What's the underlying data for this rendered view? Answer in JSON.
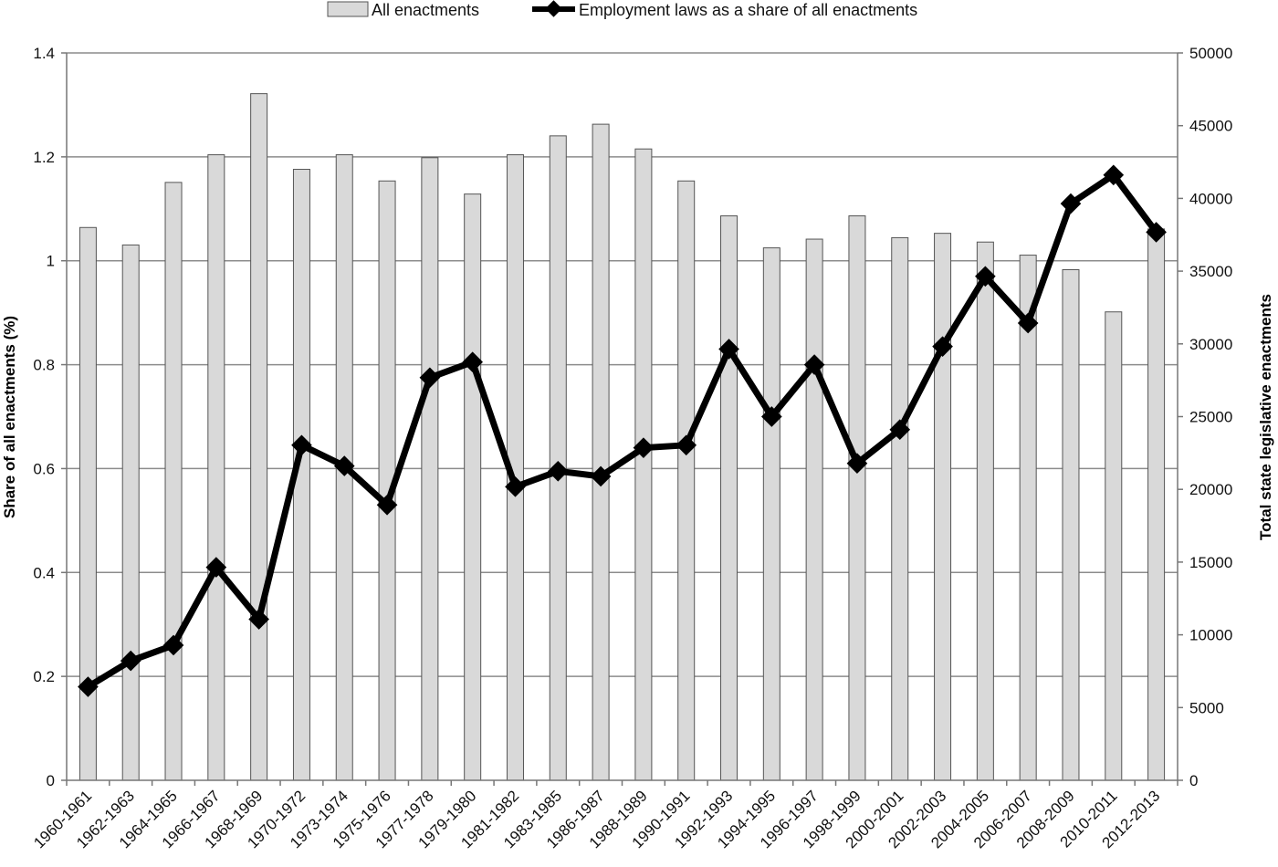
{
  "chart_data": {
    "type": "bar",
    "categories": [
      "1960-1961",
      "1962-1963",
      "1964-1965",
      "1966-1967",
      "1968-1969",
      "1970-1972",
      "1973-1974",
      "1975-1976",
      "1977-1978",
      "1979-1980",
      "1981-1982",
      "1983-1985",
      "1986-1987",
      "1988-1989",
      "1990-1991",
      "1992-1993",
      "1994-1995",
      "1996-1997",
      "1998-1999",
      "2000-2001",
      "2002-2003",
      "2004-2005",
      "2006-2007",
      "2008-2009",
      "2010-2011",
      "2012-2013"
    ],
    "series": [
      {
        "name": "All enactments",
        "type": "bar",
        "axis": "right",
        "color": "#d9d9d9",
        "values": [
          38000,
          36800,
          41100,
          43000,
          47200,
          42000,
          43000,
          41200,
          42800,
          40300,
          43000,
          44300,
          45100,
          43400,
          41200,
          38800,
          36600,
          37200,
          38800,
          37300,
          37600,
          37000,
          36100,
          35100,
          32200,
          37900
        ]
      },
      {
        "name": "Employment laws as a share of all enactments",
        "type": "line",
        "axis": "left",
        "color": "#000000",
        "values": [
          0.18,
          0.23,
          0.26,
          0.41,
          0.31,
          0.645,
          0.605,
          0.53,
          0.775,
          0.805,
          0.565,
          0.595,
          0.585,
          0.64,
          0.645,
          0.83,
          0.7,
          0.8,
          0.61,
          0.675,
          0.835,
          0.97,
          0.88,
          1.11,
          1.165,
          1.055
        ]
      }
    ],
    "y_left": {
      "label": "Share of all enactments (%)",
      "range": [
        0,
        1.4
      ],
      "ticks": [
        "0",
        "0.2",
        "0.4",
        "0.6",
        "0.8",
        "1",
        "1.2",
        "1.4"
      ]
    },
    "y_right": {
      "label": "Total state legislative enactments",
      "range": [
        0,
        50000
      ],
      "ticks": [
        "0",
        "5000",
        "10000",
        "15000",
        "20000",
        "25000",
        "30000",
        "35000",
        "40000",
        "45000",
        "50000"
      ]
    },
    "grid": true,
    "legend_position": "top"
  }
}
